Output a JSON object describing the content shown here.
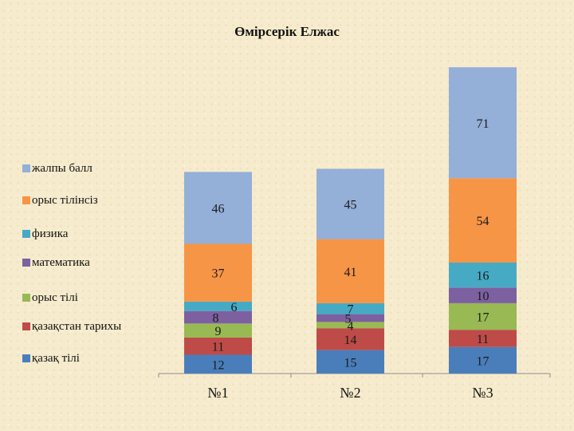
{
  "chart_data": {
    "type": "bar",
    "stacked": true,
    "title": "Өмірсерік Елжас",
    "categories": [
      "№1",
      "№2",
      "№3"
    ],
    "series": [
      {
        "name": "қазақ тілі",
        "color": "#4a7ebb",
        "values": [
          12,
          15,
          17
        ]
      },
      {
        "name": "қазақстан тарихы",
        "color": "#be4b48",
        "values": [
          11,
          14,
          11
        ]
      },
      {
        "name": "орыс тілі",
        "color": "#98b954",
        "values": [
          9,
          4,
          17
        ]
      },
      {
        "name": "математика",
        "color": "#7d60a0",
        "values": [
          8,
          5,
          10
        ]
      },
      {
        "name": "физика",
        "color": "#46aac5",
        "values": [
          6,
          7,
          16
        ]
      },
      {
        "name": "орыс тілінсіз",
        "color": "#f69546",
        "values": [
          37,
          41,
          54
        ]
      },
      {
        "name": "жалпы балл",
        "color": "#94afd8",
        "values": [
          46,
          45,
          71
        ]
      }
    ],
    "ylim": [
      0,
      190
    ],
    "grid": false,
    "legend": "left",
    "xlabel": "",
    "ylabel": ""
  }
}
